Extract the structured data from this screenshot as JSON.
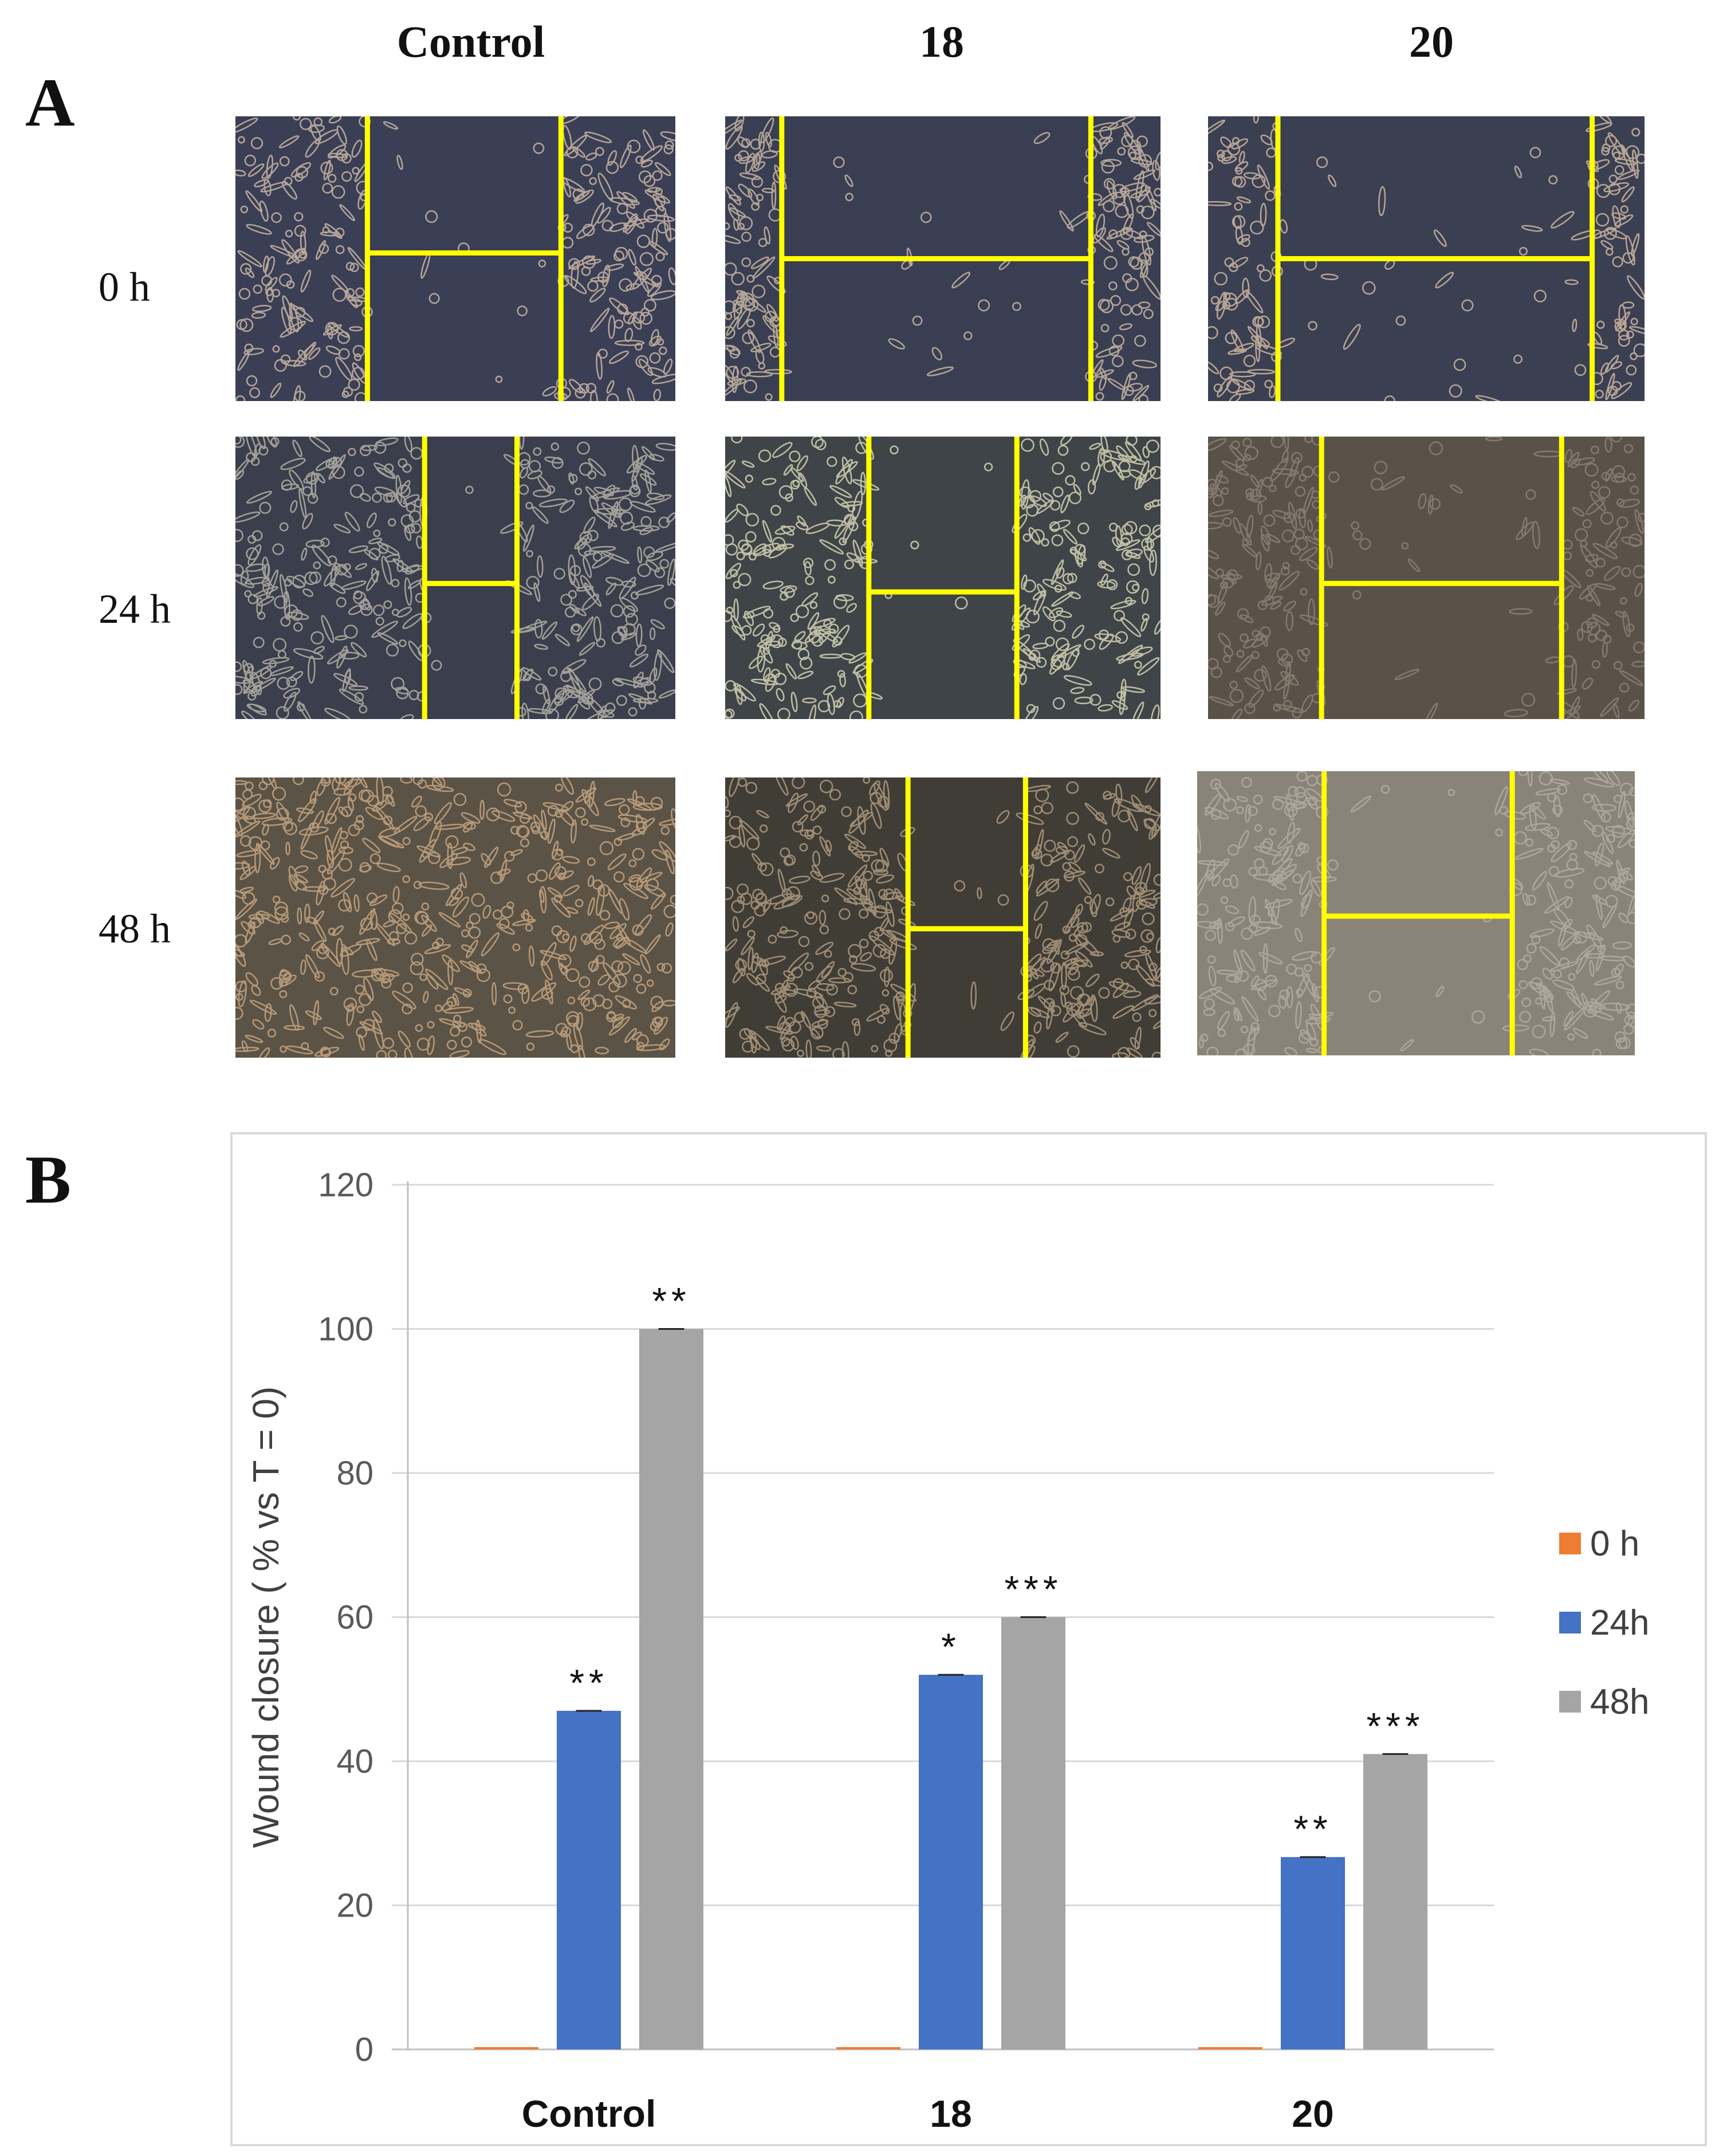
{
  "panel_a": {
    "letter": "A",
    "columns": [
      "Control",
      "18",
      "20"
    ],
    "rows": [
      "0 h",
      "24 h",
      "48 h"
    ],
    "wound_marker_color": "#ffff00"
  },
  "panel_b": {
    "letter": "B"
  },
  "chart_data": {
    "type": "bar",
    "categories": [
      "Control",
      "18",
      "20"
    ],
    "series": [
      {
        "name": "0 h",
        "color": "#ed7d31",
        "values": [
          0.3,
          0.3,
          0.3
        ],
        "significance": [
          "",
          "",
          ""
        ]
      },
      {
        "name": "24h",
        "color": "#4472c4",
        "values": [
          47,
          52,
          26.7
        ],
        "significance": [
          "**",
          "*",
          "**"
        ]
      },
      {
        "name": "48h",
        "color": "#a5a5a5",
        "values": [
          100,
          60,
          41
        ],
        "significance": [
          "**",
          "***",
          "***"
        ]
      }
    ],
    "title": "",
    "xlabel": "",
    "ylabel": "Wound closure ( % vs T = 0)",
    "ylim": [
      0,
      120
    ],
    "yticks": [
      0,
      20,
      40,
      60,
      80,
      100,
      120
    ],
    "grid": true,
    "legend_position": "right"
  }
}
